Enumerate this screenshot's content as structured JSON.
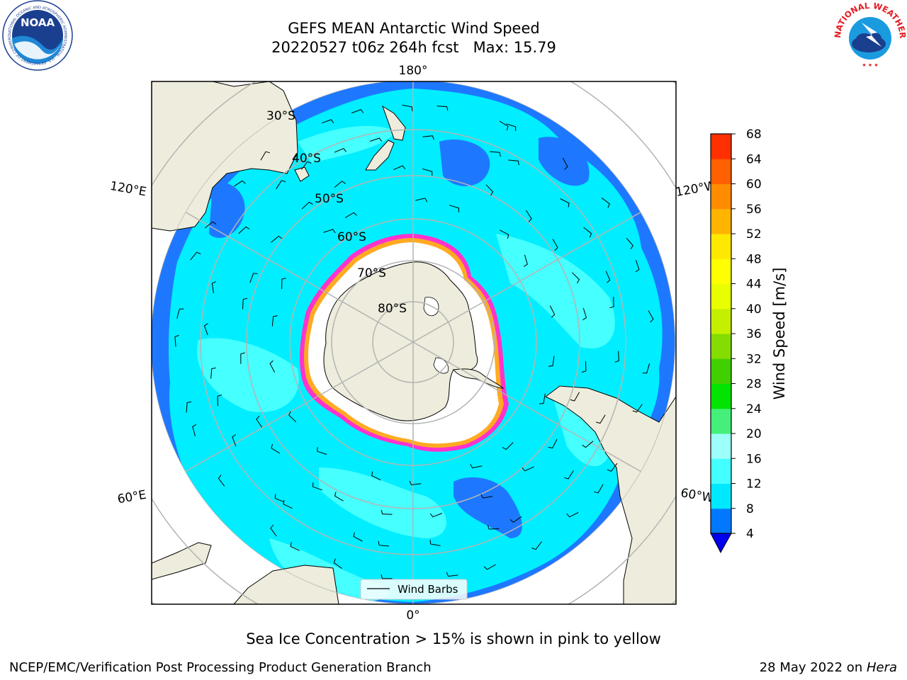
{
  "header": {
    "title_line1": "GEFS MEAN Antarctic Wind Speed",
    "title_line2": "20220527 t06z 264h fcst   Max: 15.79"
  },
  "logos": {
    "left": {
      "text": "NOAA",
      "ring_text": "NATIONAL OCEANIC AND ATMOSPHERIC ADMINISTRATION · U.S. DEPARTMENT OF COMMERCE"
    },
    "right": {
      "ring_text": "NATIONAL WEATHER SERVICE"
    }
  },
  "map": {
    "projection": "south-polar-stereographic",
    "longitude_labels": {
      "top": "180°",
      "bottom": "0°",
      "upper_left": "120°E",
      "lower_left": "60°E",
      "upper_right": "120°W",
      "lower_right": "60°W"
    },
    "latitude_labels": [
      "30°S",
      "40°S",
      "50°S",
      "60°S",
      "70°S",
      "80°S"
    ],
    "legend_label": "Wind Barbs",
    "colors": {
      "land": "#eeecdc",
      "ice": "#ffffff",
      "sea_4_8": "#1e78ff",
      "sea_8_12": "#00eeff",
      "sea_12_16": "#46ffff",
      "ice_edge": [
        "#ff33cc",
        "#ffaa22",
        "#ffee55"
      ],
      "grid": "#b4b4b4"
    }
  },
  "colorbar": {
    "label": "Wind Speed [m/s]",
    "ticks": [
      "4",
      "8",
      "12",
      "16",
      "20",
      "24",
      "28",
      "32",
      "36",
      "40",
      "44",
      "48",
      "52",
      "56",
      "60",
      "64",
      "68"
    ],
    "colors": [
      "#0078ff",
      "#00e8ff",
      "#44ffff",
      "#9efffa",
      "#44f07a",
      "#00e400",
      "#40d000",
      "#84dc00",
      "#c4f000",
      "#e8ff00",
      "#ffff00",
      "#ffe800",
      "#ffb400",
      "#ff8c00",
      "#ff6000",
      "#ff3000",
      "#ff0000"
    ],
    "extend_color": "#0000ee"
  },
  "caption": "Sea Ice Concentration > 15% is shown in pink to yellow",
  "footer": {
    "left": "NCEP/EMC/Verification Post Processing Product Generation Branch",
    "right_date": "28 May 2022 on ",
    "right_host": "Hera"
  }
}
